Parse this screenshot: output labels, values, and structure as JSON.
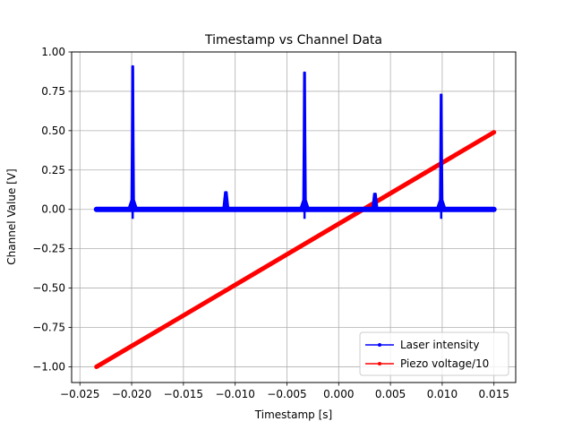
{
  "chart_data": {
    "type": "line",
    "title": "Timestamp vs Channel Data",
    "xlabel": "Timestamp [s]",
    "ylabel": "Channel Value [V]",
    "xlim": [
      -0.0258,
      0.0171
    ],
    "ylim": [
      -1.1,
      1.0
    ],
    "xticks": [
      -0.025,
      -0.02,
      -0.015,
      -0.01,
      -0.005,
      0.0,
      0.005,
      0.01,
      0.015
    ],
    "xtick_labels": [
      "−0.025",
      "−0.020",
      "−0.015",
      "−0.010",
      "−0.005",
      "0.000",
      "0.005",
      "0.010",
      "0.015"
    ],
    "yticks": [
      1.0,
      0.75,
      0.5,
      0.25,
      0.0,
      -0.25,
      -0.5,
      -0.75,
      -1.0
    ],
    "ytick_labels": [
      "1.00",
      "0.75",
      "0.50",
      "0.25",
      "0.00",
      "−0.25",
      "−0.50",
      "−0.75",
      "−1.00"
    ],
    "grid": true,
    "legend_position": "lower-right",
    "series": [
      {
        "name": "Laser intensity",
        "color": "#0000ff",
        "baseline_x_range": [
          -0.0234,
          0.015
        ],
        "baseline_y": 0.0,
        "peaks": [
          {
            "x": -0.0199,
            "y": 0.91
          },
          {
            "x": -0.0109,
            "y": 0.11
          },
          {
            "x": -0.0033,
            "y": 0.87
          },
          {
            "x": 0.0035,
            "y": 0.1
          },
          {
            "x": 0.0099,
            "y": 0.73
          }
        ]
      },
      {
        "name": "Piezo voltage/10",
        "color": "#ff0000",
        "points": [
          {
            "x": -0.0234,
            "y": -1.0
          },
          {
            "x": 0.015,
            "y": 0.49
          }
        ]
      }
    ]
  }
}
